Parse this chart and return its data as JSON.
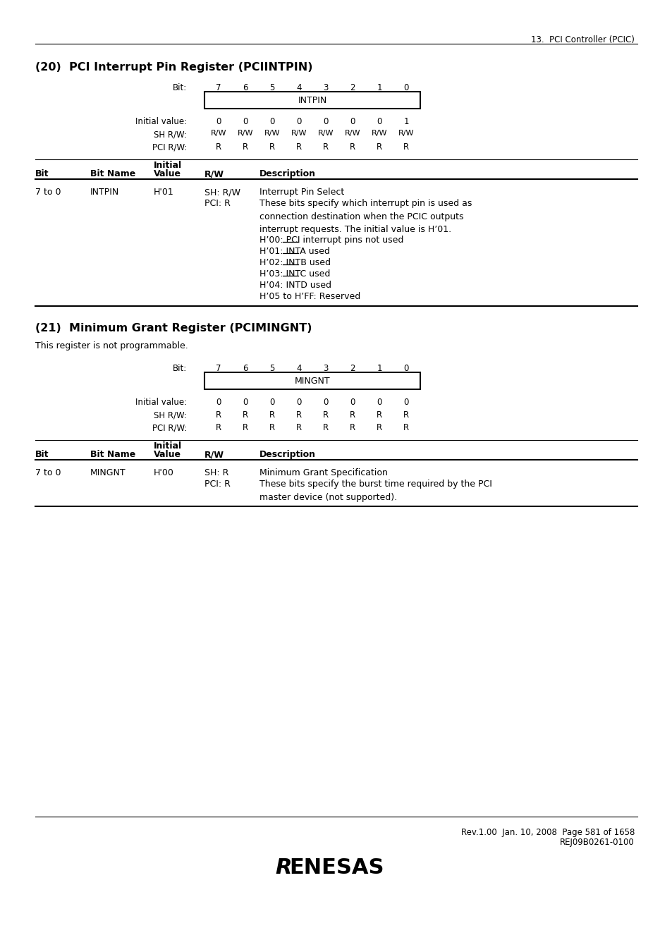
{
  "page_header_right": "13.  PCI Controller (PCIC)",
  "section1_title": "(20)  PCI Interrupt Pin Register (PCIINTPIN)",
  "section1_reg_name": "INTPIN",
  "section1_bits": [
    "7",
    "6",
    "5",
    "4",
    "3",
    "2",
    "1",
    "0"
  ],
  "section1_initial": [
    "0",
    "0",
    "0",
    "0",
    "0",
    "0",
    "0",
    "1"
  ],
  "section1_sh_rw": [
    "R/W",
    "R/W",
    "R/W",
    "R/W",
    "R/W",
    "R/W",
    "R/W",
    "R/W"
  ],
  "section1_pci_rw": [
    "R",
    "R",
    "R",
    "R",
    "R",
    "R",
    "R",
    "R"
  ],
  "section2_title": "(21)  Minimum Grant Register (PCIMINGNT)",
  "section2_note": "This register is not programmable.",
  "section2_reg_name": "MINGNT",
  "section2_bits": [
    "7",
    "6",
    "5",
    "4",
    "3",
    "2",
    "1",
    "0"
  ],
  "section2_initial": [
    "0",
    "0",
    "0",
    "0",
    "0",
    "0",
    "0",
    "0"
  ],
  "section2_sh_rw": [
    "R",
    "R",
    "R",
    "R",
    "R",
    "R",
    "R",
    "R"
  ],
  "section2_pci_rw": [
    "R",
    "R",
    "R",
    "R",
    "R",
    "R",
    "R",
    "R"
  ],
  "footer_line1": "Rev.1.00  Jan. 10, 2008  Page 581 of 1658",
  "footer_line2": "REJ09B0261-0100",
  "bg_color": "#ffffff",
  "text_color": "#000000",
  "reg_box_color": "#ffffff",
  "reg_box_edge": "#000000"
}
